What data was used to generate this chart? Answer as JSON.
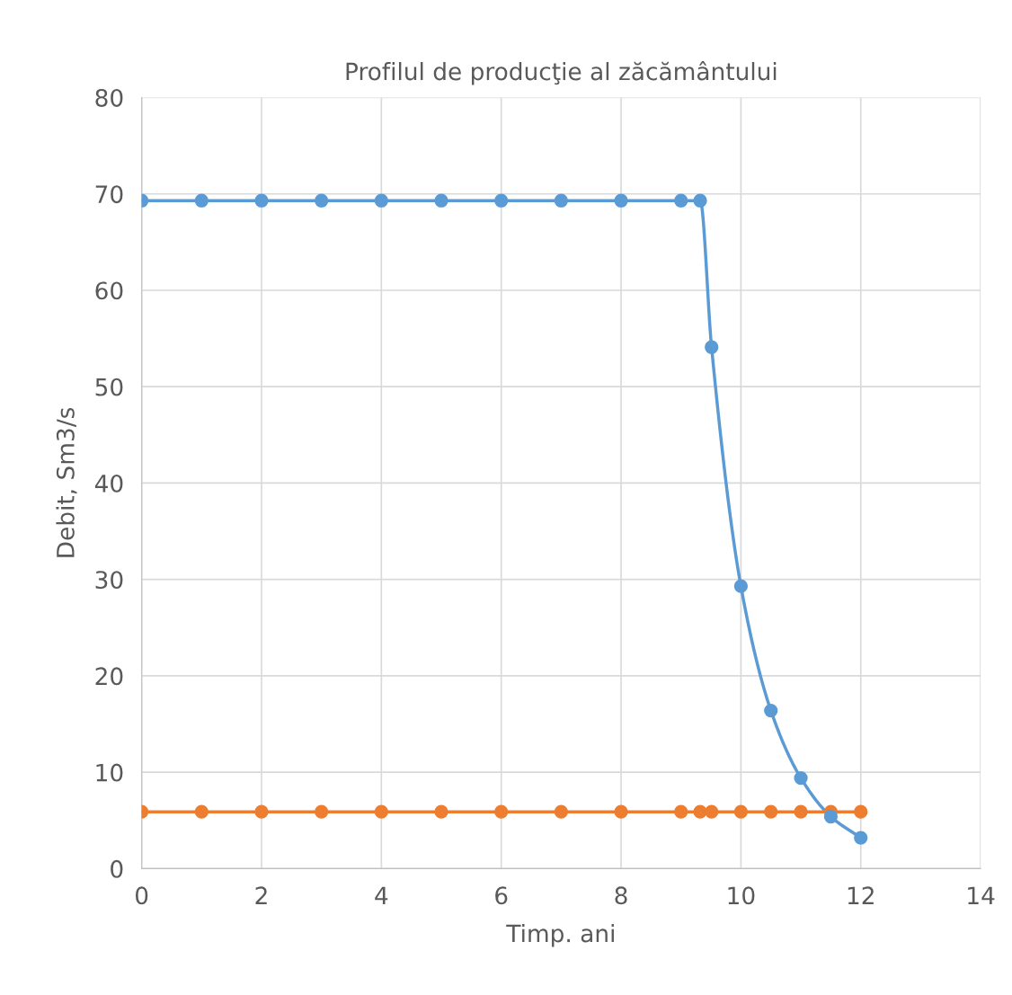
{
  "chart_data": {
    "type": "line",
    "title": "Profilul de producţie al zăcământului",
    "xlabel": "Timp. ani",
    "ylabel": "Debit, Sm3/s",
    "series": [
      {
        "color": "#5b9bd5",
        "x": [
          0,
          1,
          2,
          3,
          4,
          5,
          6,
          7,
          8,
          9,
          9.32,
          9.51,
          10,
          10.5,
          11,
          11.5,
          12
        ],
        "values": [
          69.3,
          69.3,
          69.3,
          69.3,
          69.3,
          69.3,
          69.3,
          69.3,
          69.3,
          69.3,
          69.3,
          54.1,
          29.3,
          16.4,
          9.4,
          5.4,
          3.2
        ]
      },
      {
        "color": "#ed7d31",
        "x": [
          0,
          1,
          2,
          3,
          4,
          5,
          6,
          7,
          8,
          9,
          9.32,
          9.51,
          10,
          10.5,
          11,
          11.5,
          12
        ],
        "values": [
          5.9,
          5.9,
          5.9,
          5.9,
          5.9,
          5.9,
          5.9,
          5.9,
          5.9,
          5.9,
          5.9,
          5.9,
          5.9,
          5.9,
          5.9,
          5.9,
          5.9
        ]
      }
    ],
    "xlim": [
      0,
      14
    ],
    "xticks": [
      0,
      2,
      4,
      6,
      8,
      10,
      12,
      14
    ],
    "ylim": [
      0,
      80
    ],
    "yticks": [
      0,
      10,
      20,
      30,
      40,
      50,
      60,
      70,
      80
    ],
    "grid": true,
    "marker": "circle",
    "line_style": "solid"
  }
}
